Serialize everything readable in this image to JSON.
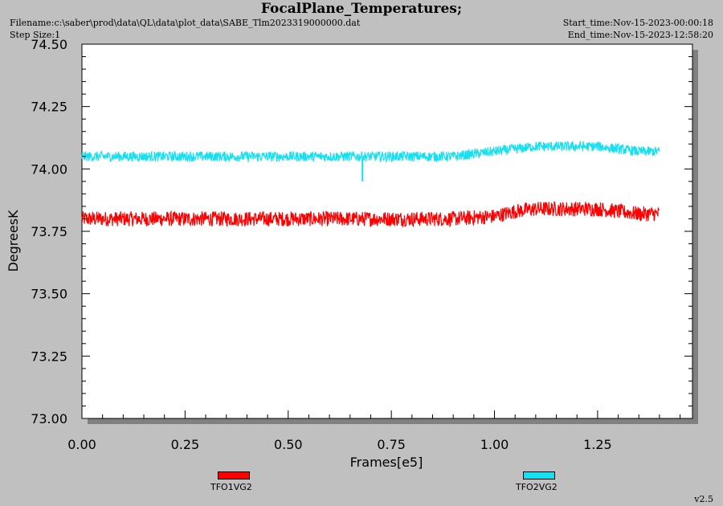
{
  "header": {
    "title": "FocalPlane_Temperatures;",
    "filename": "Filename:c:\\saber\\prod\\data\\QL\\data\\plot_data\\SABE_Tlm2023319000000.dat",
    "step_size": "Step Size:1",
    "start_time": "Start_time:Nov-15-2023-00:00:18",
    "end_time": "End_time:Nov-15-2023-12:58:20"
  },
  "version": "v2.5",
  "colors": {
    "background": "#c0c0c0",
    "plot_area": "#ffffff",
    "TFO1VG2": "#ff0000",
    "TFO2VG2": "#14e0f2"
  },
  "chart_data": {
    "type": "line",
    "title": "FocalPlane_Temperatures;",
    "xlabel": "Frames[e5]",
    "ylabel": "DegreesK",
    "xlim": [
      0,
      1.48
    ],
    "ylim": [
      73.0,
      74.5
    ],
    "xticks": [
      "0.00",
      "0.25",
      "0.50",
      "0.75",
      "1.00",
      "1.25"
    ],
    "yticks": [
      "73.00",
      "73.25",
      "73.50",
      "73.75",
      "74.00",
      "74.25",
      "74.50"
    ],
    "grid": false,
    "legend_position": "bottom",
    "series": [
      {
        "name": "TFO1VG2",
        "color": "#ff0000",
        "x": [
          0.0,
          0.1,
          0.2,
          0.3,
          0.4,
          0.5,
          0.6,
          0.7,
          0.8,
          0.9,
          1.0,
          1.05,
          1.1,
          1.15,
          1.2,
          1.25,
          1.3,
          1.35,
          1.4
        ],
        "y": [
          73.8,
          73.8,
          73.8,
          73.8,
          73.8,
          73.8,
          73.8,
          73.8,
          73.8,
          73.8,
          73.81,
          73.83,
          73.84,
          73.84,
          73.84,
          73.84,
          73.83,
          73.82,
          73.82
        ],
        "noise": 0.03
      },
      {
        "name": "TFO2VG2",
        "color": "#14e0f2",
        "x": [
          0.0,
          0.1,
          0.2,
          0.3,
          0.4,
          0.5,
          0.6,
          0.7,
          0.8,
          0.9,
          1.0,
          1.05,
          1.1,
          1.15,
          1.2,
          1.25,
          1.3,
          1.35,
          1.4
        ],
        "y": [
          74.05,
          74.05,
          74.05,
          74.05,
          74.05,
          74.05,
          74.05,
          74.05,
          74.05,
          74.05,
          74.07,
          74.08,
          74.09,
          74.09,
          74.09,
          74.09,
          74.08,
          74.07,
          74.07
        ],
        "noise": 0.02
      }
    ]
  }
}
